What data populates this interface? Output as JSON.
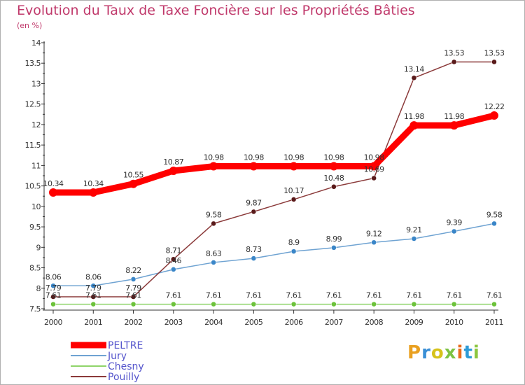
{
  "title": "Evolution du Taux de Taxe Foncière sur les Propriétés Bâties",
  "unit": "(en %)",
  "logo": {
    "letters": [
      "P",
      "r",
      "o",
      "x",
      "i",
      "t",
      "i"
    ]
  },
  "chart_data": {
    "type": "line",
    "title": "Evolution du Taux de Taxe Foncière sur les Propriétés Bâties",
    "ylabel": "(en %)",
    "xlabel": "",
    "ylim": [
      7.5,
      14
    ],
    "yticks": [
      "7.5",
      "8",
      "8.5",
      "9",
      "9.5",
      "10",
      "10.5",
      "11",
      "11.5",
      "12",
      "12.5",
      "13",
      "13.5",
      "14"
    ],
    "categories": [
      "2000",
      "2001",
      "2002",
      "2003",
      "2004",
      "2005",
      "2006",
      "2007",
      "2008",
      "2009",
      "2010",
      "2011"
    ],
    "legend_position": "bottom-left",
    "grid": false,
    "series": [
      {
        "name": "PELTRE",
        "color": "#ff0000",
        "values": [
          10.34,
          10.34,
          10.55,
          10.87,
          10.98,
          10.98,
          10.98,
          10.98,
          10.98,
          11.98,
          11.98,
          12.22
        ],
        "labels": [
          "10.34",
          "10.34",
          "10.55",
          "10.87",
          "10.98",
          "10.98",
          "10.98",
          "10.98",
          "10.98",
          "11.98",
          "11.98",
          "12.22"
        ]
      },
      {
        "name": "Jury",
        "color": "#6fa3d2",
        "values": [
          8.06,
          8.06,
          8.22,
          8.46,
          8.63,
          8.73,
          8.9,
          8.99,
          9.12,
          9.21,
          9.39,
          9.58
        ],
        "labels": [
          "8.06",
          "8.06",
          "8.22",
          "8.46",
          "8.63",
          "8.73",
          "8.9",
          "8.99",
          "9.12",
          "9.21",
          "9.39",
          "9.58"
        ]
      },
      {
        "name": "Chesny",
        "color": "#8fd46a",
        "values": [
          7.61,
          7.61,
          7.61,
          7.61,
          7.61,
          7.61,
          7.61,
          7.61,
          7.61,
          7.61,
          7.61,
          7.61
        ],
        "labels": [
          "7.61",
          "7.61",
          "7.61",
          "7.61",
          "7.61",
          "7.61",
          "7.61",
          "7.61",
          "7.61",
          "7.61",
          "7.61",
          "7.61"
        ]
      },
      {
        "name": "Pouilly",
        "color": "#8b3a3a",
        "values": [
          7.79,
          7.79,
          7.79,
          8.71,
          9.58,
          9.87,
          10.17,
          10.48,
          10.69,
          13.14,
          13.53,
          13.53
        ],
        "labels": [
          "7.79",
          "7.79",
          "7.79",
          "8.71",
          "9.58",
          "9.87",
          "10.17",
          "10.48",
          "10.69",
          "13.14",
          "13.53",
          "13.53"
        ]
      }
    ]
  }
}
